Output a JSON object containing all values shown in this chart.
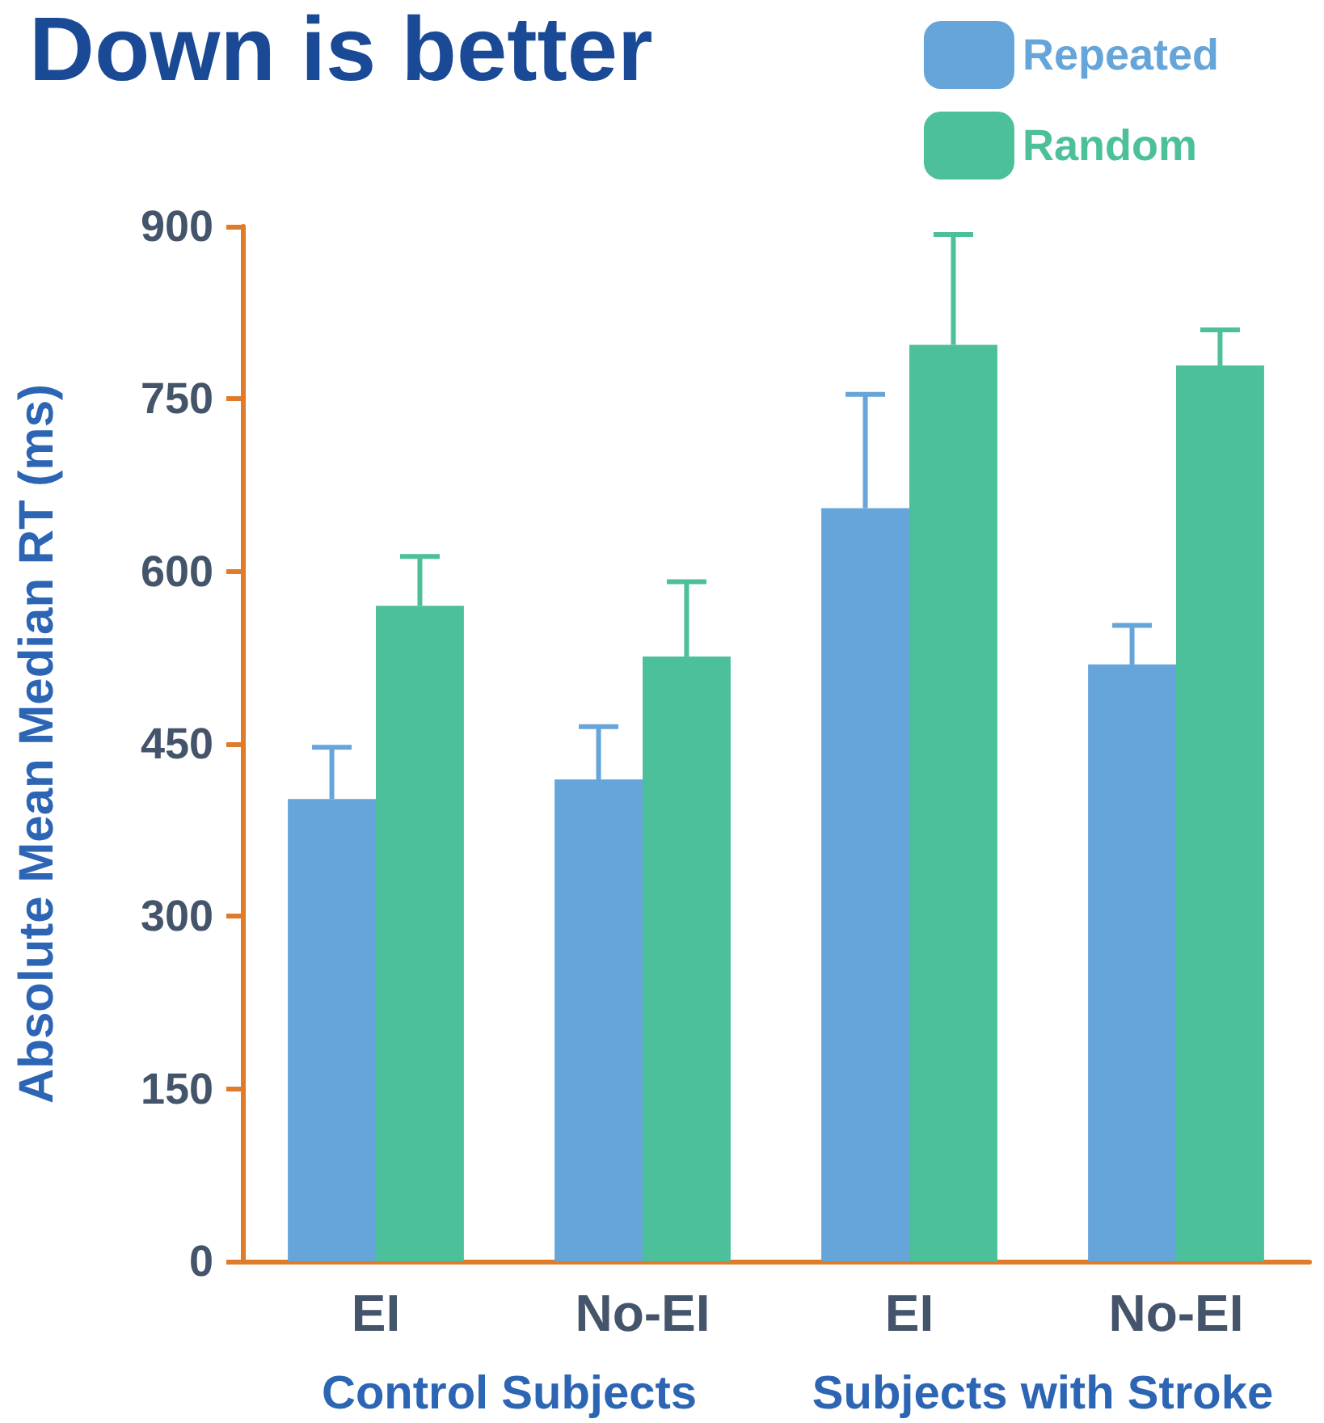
{
  "chart_data": {
    "type": "bar",
    "title": "Down is better",
    "ylabel": "Absolute Mean Median RT (ms)",
    "categories": [
      "EI",
      "No-EI",
      "EI",
      "No-EI"
    ],
    "series": [
      {
        "name": "Repeated",
        "color": "#66a5d9",
        "values": [
          402,
          419,
          655,
          519
        ],
        "errors": [
          [
            402,
            447
          ],
          [
            419,
            465
          ],
          [
            655,
            754
          ],
          [
            519,
            553
          ]
        ]
      },
      {
        "name": "Random",
        "color": "#4cbf9b",
        "values": [
          570,
          526,
          797,
          779
        ],
        "errors": [
          [
            570,
            613
          ],
          [
            526,
            591
          ],
          [
            797,
            893
          ],
          [
            779,
            810
          ]
        ]
      }
    ],
    "ylim": [
      0,
      900
    ],
    "yticks": [
      0,
      150,
      300,
      450,
      600,
      750,
      900
    ],
    "grid": false,
    "legend": "top right",
    "annotations": [
      "Control Subjects",
      "Subjects with Stroke"
    ]
  }
}
